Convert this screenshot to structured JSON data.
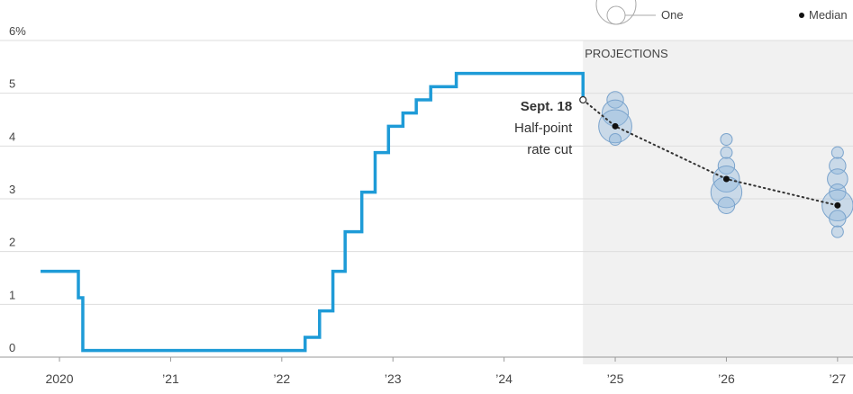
{
  "chart_data": {
    "type": "line",
    "step": "post",
    "color": "#1e9bd7",
    "x": [
      2019.83,
      2020.17,
      2020.21,
      2022.21,
      2022.34,
      2022.46,
      2022.57,
      2022.72,
      2022.84,
      2022.96,
      2023.09,
      2023.21,
      2023.34,
      2023.57,
      2024.71
    ],
    "values": [
      1.625,
      1.125,
      0.125,
      0.375,
      0.875,
      1.625,
      2.375,
      3.125,
      3.875,
      4.375,
      4.625,
      4.875,
      5.125,
      5.375,
      4.875
    ],
    "xlim": [
      2019.465,
      2027.139
    ],
    "xticks": [
      2020,
      {
        "value": 2021,
        "label": "’21"
      },
      {
        "value": 2022,
        "label": "’22"
      },
      {
        "value": 2023,
        "label": "’23"
      },
      {
        "value": 2024,
        "label": "’24"
      },
      {
        "value": 2025,
        "label": "’25"
      },
      {
        "value": 2026,
        "label": "’26"
      },
      {
        "value": 2027,
        "label": "’27"
      }
    ],
    "ylim": [
      0,
      6
    ],
    "yticks": [
      0,
      1,
      2,
      3,
      4,
      5,
      {
        "value": 6,
        "label": "6%"
      }
    ],
    "grid": true,
    "projections_label": "PROJECTIONS",
    "annotations": [
      "Sept. 18",
      "Half-point",
      "rate cut"
    ],
    "legend": {
      "size_label": "One",
      "median_label": "Median"
    },
    "bubble_color": "#8fb6dd",
    "projections": [
      {
        "year": 2025,
        "rates": [
          4.875,
          4.625,
          4.375,
          4.125
        ],
        "counts": [
          2,
          5,
          8,
          1
        ],
        "median": 4.375
      },
      {
        "year": 2026,
        "rates": [
          4.125,
          3.875,
          3.625,
          3.375,
          3.125,
          2.875
        ],
        "counts": [
          1,
          1,
          2,
          5,
          7,
          2
        ],
        "median": 3.375
      },
      {
        "year": 2027,
        "rates": [
          3.875,
          3.625,
          3.375,
          3.125,
          2.875,
          2.625,
          2.375
        ],
        "counts": [
          1,
          2,
          3,
          2,
          7,
          2,
          1
        ],
        "median": 2.875
      }
    ]
  }
}
